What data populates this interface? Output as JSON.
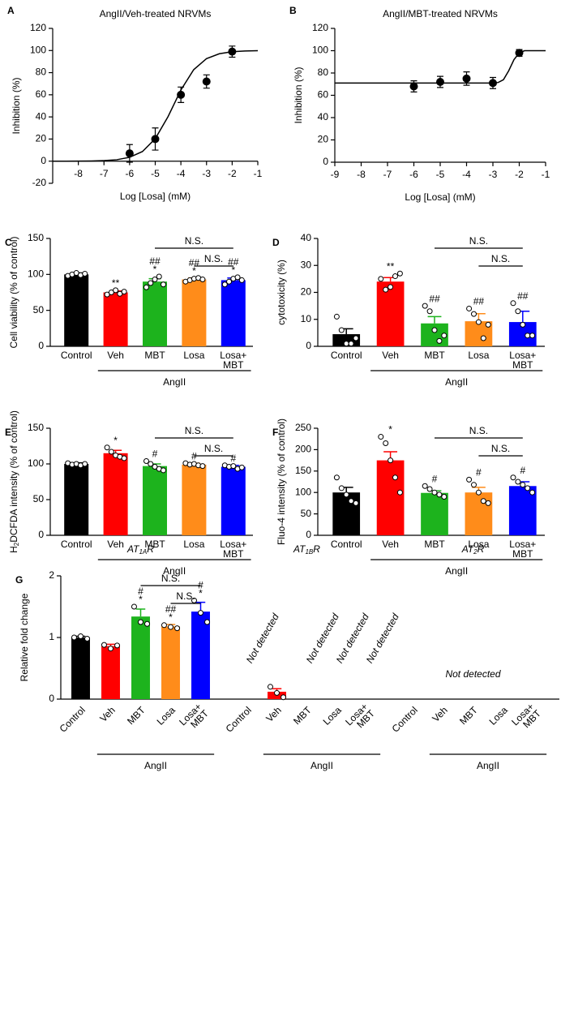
{
  "chart_data": [
    {
      "panel": "A",
      "type": "scatter",
      "title": "AngII/Veh-treated NRVMs",
      "xlabel": "Log [Losa] (mM)",
      "ylabel": "Inhibition (%)",
      "color": "#000000",
      "x": [
        -6,
        -5,
        -4,
        -3,
        -2
      ],
      "values": [
        7,
        20,
        60,
        72,
        99
      ],
      "errors": [
        8,
        10,
        7,
        6,
        5
      ],
      "fit": {
        "x": [
          -9,
          -8.5,
          -8,
          -7.5,
          -7,
          -6.5,
          -6,
          -5.5,
          -5,
          -4.5,
          -4,
          -3.5,
          -3,
          -2.5,
          -2,
          -1.5,
          -1
        ],
        "values": [
          0,
          0,
          0.1,
          0.2,
          0.5,
          1.3,
          3.5,
          8.7,
          20.3,
          40.3,
          64.3,
          82.7,
          92.7,
          97.1,
          98.9,
          99.6,
          99.8
        ]
      },
      "xlim": [
        -9,
        -1
      ],
      "xticks": [
        -8,
        -7,
        -6,
        -5,
        -4,
        -3,
        -2,
        -1
      ],
      "ylim": [
        -20,
        120
      ],
      "yticks": [
        -20,
        0,
        20,
        40,
        60,
        80,
        100,
        120
      ]
    },
    {
      "panel": "B",
      "type": "scatter",
      "title": "AngII/MBT-treated  NRVMs",
      "xlabel": "Log [Losa] (mM)",
      "ylabel": "Inhibition (%)",
      "color": "#000000",
      "x": [
        -6,
        -5,
        -4,
        -3,
        -2
      ],
      "values": [
        68,
        72,
        75,
        71,
        98
      ],
      "errors": [
        5,
        5,
        6,
        5,
        3
      ],
      "fit": {
        "x": [
          -9,
          -3,
          -2.8,
          -2.6,
          -2.4,
          -2.2,
          -2,
          -1.8,
          -1
        ],
        "values": [
          71,
          71,
          71.5,
          74,
          82,
          92,
          98,
          100,
          100
        ]
      },
      "xlim": [
        -9,
        -1
      ],
      "xticks": [
        -9,
        -8,
        -7,
        -6,
        -5,
        -4,
        -3,
        -2,
        -1
      ],
      "ylim": [
        0,
        120
      ],
      "yticks": [
        0,
        20,
        40,
        60,
        80,
        100,
        120
      ]
    },
    {
      "panel": "C",
      "type": "bar",
      "ylabel": "Cell viability (% of control)",
      "group_label": "AngII",
      "categories": [
        "Control",
        "Veh",
        "MBT",
        "Losa",
        [
          "Losa+",
          "MBT"
        ]
      ],
      "colors": [
        "#000000",
        "#ff0000",
        "#1db31d",
        "#ff8c1a",
        "#0000ff"
      ],
      "values": [
        100,
        75,
        90,
        93,
        92
      ],
      "errors": [
        2,
        2,
        4,
        2,
        3
      ],
      "points": [
        [
          98,
          100,
          102,
          99,
          101
        ],
        [
          72,
          75,
          78,
          73,
          76
        ],
        [
          82,
          88,
          93,
          97,
          86
        ],
        [
          90,
          92,
          94,
          95,
          93
        ],
        [
          86,
          90,
          94,
          96,
          92
        ]
      ],
      "significance": [
        null,
        [
          "**"
        ],
        [
          "##",
          "*"
        ],
        [
          "##",
          "*"
        ],
        [
          "##",
          "*"
        ]
      ],
      "brackets": [
        {
          "label": "N.S.",
          "span": [
            2,
            4
          ]
        },
        {
          "label": "N.S.",
          "span": [
            3,
            4
          ]
        }
      ],
      "ylim": [
        0,
        150
      ],
      "yticks": [
        0,
        50,
        100,
        150
      ]
    },
    {
      "panel": "D",
      "type": "bar",
      "ylabel": "cytotoxicity  (%)",
      "group_label": "AngII",
      "categories": [
        "Control",
        "Veh",
        "MBT",
        "Losa",
        [
          "Losa+",
          "MBT"
        ]
      ],
      "colors": [
        "#000000",
        "#ff0000",
        "#1db31d",
        "#ff8c1a",
        "#0000ff"
      ],
      "values": [
        4.5,
        24,
        8.5,
        9.3,
        9
      ],
      "errors": [
        2,
        1.5,
        2.5,
        2.8,
        4
      ],
      "points": [
        [
          11,
          6,
          1,
          1,
          3
        ],
        [
          25,
          21,
          22,
          26,
          27
        ],
        [
          15,
          13,
          6,
          2,
          4
        ],
        [
          14,
          12,
          9,
          3,
          8
        ],
        [
          16,
          13,
          8,
          4,
          4
        ]
      ],
      "significance": [
        null,
        [
          "**"
        ],
        [
          "##"
        ],
        [
          "##"
        ],
        [
          "##"
        ]
      ],
      "brackets": [
        {
          "label": "N.S.",
          "span": [
            2,
            4
          ]
        },
        {
          "label": "N.S.",
          "span": [
            3,
            4
          ]
        }
      ],
      "ylim": [
        0,
        40
      ],
      "yticks": [
        0,
        10,
        20,
        30,
        40
      ]
    },
    {
      "panel": "E",
      "type": "bar",
      "ylabel": [
        "H",
        "2",
        "DCFDA intensity (% of control)"
      ],
      "group_label": "AngII",
      "categories": [
        "Control",
        "Veh",
        "MBT",
        "Losa",
        [
          "Losa+",
          "MBT"
        ]
      ],
      "colors": [
        "#000000",
        "#ff0000",
        "#1db31d",
        "#ff8c1a",
        "#0000ff"
      ],
      "values": [
        100,
        115,
        97,
        99,
        96
      ],
      "errors": [
        1.5,
        4,
        3,
        2,
        2
      ],
      "points": [
        [
          101,
          99,
          100,
          98,
          100
        ],
        [
          123,
          117,
          112,
          110,
          108
        ],
        [
          104,
          100,
          96,
          93,
          91
        ],
        [
          101,
          99,
          100,
          98,
          97
        ],
        [
          98,
          96,
          97,
          93,
          95
        ]
      ],
      "significance": [
        null,
        [
          "*"
        ],
        [
          "#"
        ],
        [
          "#"
        ],
        [
          "#"
        ]
      ],
      "brackets": [
        {
          "label": "N.S.",
          "span": [
            2,
            4
          ]
        },
        {
          "label": "N.S.",
          "span": [
            3,
            4
          ]
        }
      ],
      "ylim": [
        0,
        150
      ],
      "yticks": [
        0,
        50,
        100,
        150
      ]
    },
    {
      "panel": "F",
      "type": "bar",
      "ylabel": "Fluo-4 intensity (% of control)",
      "group_label": "AngII",
      "categories": [
        "Control",
        "Veh",
        "MBT",
        "Losa",
        [
          "Losa+",
          "MBT"
        ]
      ],
      "colors": [
        "#000000",
        "#ff0000",
        "#1db31d",
        "#ff8c1a",
        "#0000ff"
      ],
      "values": [
        100,
        175,
        99,
        100,
        115
      ],
      "errors": [
        12,
        20,
        5,
        12,
        10
      ],
      "points": [
        [
          135,
          110,
          95,
          80,
          75
        ],
        [
          230,
          215,
          175,
          135,
          100
        ],
        [
          115,
          108,
          100,
          95,
          90
        ],
        [
          130,
          118,
          100,
          80,
          75
        ],
        [
          135,
          125,
          118,
          110,
          100
        ]
      ],
      "significance": [
        null,
        [
          "*"
        ],
        [
          "#"
        ],
        [
          "#"
        ],
        [
          "#"
        ]
      ],
      "brackets": [
        {
          "label": "N.S.",
          "span": [
            2,
            4
          ]
        },
        {
          "label": "N.S.",
          "span": [
            3,
            4
          ]
        }
      ],
      "ylim": [
        0,
        250
      ],
      "yticks": [
        0,
        50,
        100,
        150,
        200,
        250
      ]
    },
    {
      "panel": "G",
      "type": "bar",
      "ylabel": "Relative fold change",
      "categories": [
        "Control",
        "Veh",
        "MBT",
        "Losa",
        [
          "Losa+",
          "MBT"
        ]
      ],
      "colors": [
        "#000000",
        "#ff0000",
        "#1db31d",
        "#ff8c1a",
        "#0000ff"
      ],
      "groups": [
        {
          "name": [
            "AT",
            "1A",
            "R"
          ],
          "group_label": "AngII",
          "values": [
            1.0,
            0.86,
            1.34,
            1.18,
            1.42
          ],
          "errors": [
            0.02,
            0.03,
            0.12,
            0.03,
            0.15
          ],
          "points": [
            [
              1.0,
              1.02,
              0.98
            ],
            [
              0.88,
              0.82,
              0.87
            ],
            [
              1.5,
              1.25,
              1.22
            ],
            [
              1.2,
              1.17,
              1.15
            ],
            [
              1.6,
              1.4,
              1.25
            ]
          ],
          "significance": [
            null,
            null,
            [
              "#",
              "*"
            ],
            [
              "##",
              "*"
            ],
            [
              "#",
              "*"
            ]
          ],
          "brackets": [
            {
              "label": "N.S.",
              "span": [
                2,
                4
              ]
            },
            {
              "label": "N.S.",
              "span": [
                3,
                4
              ]
            }
          ]
        },
        {
          "name": [
            "AT",
            "1B",
            "R"
          ],
          "group_label": "AngII",
          "values": [
            null,
            0.12,
            null,
            null,
            null
          ],
          "errors": [
            null,
            0.05,
            null,
            null,
            null
          ],
          "value_labels": [
            "Not detected",
            null,
            "Not detected",
            "Not detected",
            "Not detected"
          ],
          "points": [
            null,
            [
              0.2,
              0.1,
              0.03
            ],
            null,
            null,
            null
          ]
        },
        {
          "name": [
            "AT",
            "2",
            "R"
          ],
          "group_label": "AngII",
          "values": [
            null,
            null,
            null,
            null,
            null
          ],
          "note": "Not detected"
        }
      ],
      "ylim": [
        0,
        2
      ],
      "yticks": [
        0,
        1,
        2
      ]
    }
  ]
}
